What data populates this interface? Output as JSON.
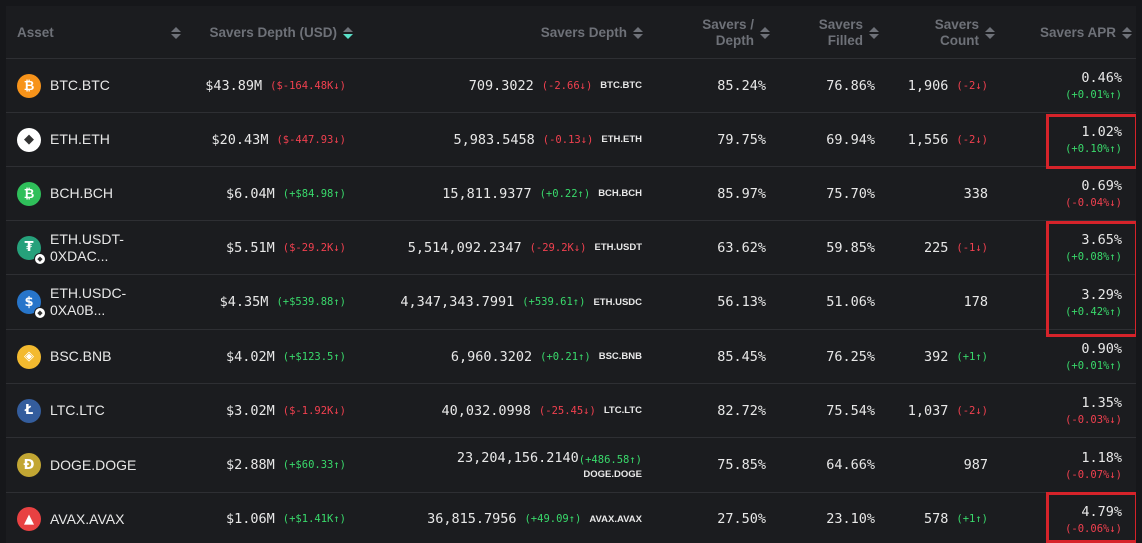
{
  "headers": {
    "asset": "Asset",
    "depth_usd": "Savers Depth (USD)",
    "depth": "Savers Depth",
    "savers_depth_pct": [
      "Savers /",
      "Depth"
    ],
    "filled": [
      "Savers",
      "Filled"
    ],
    "count": [
      "Savers",
      "Count"
    ],
    "apr": "Savers APR"
  },
  "colors": {
    "up": "#39d96b",
    "down": "#f0404f",
    "sort_active": "#5ae0c8",
    "highlight": "#d6232a"
  },
  "rows": [
    {
      "asset": "BTC.BTC",
      "icon": "bitcoin-icon",
      "icon_color": "#f7931a",
      "usd": "$43.89M",
      "usd_chg": "($-164.48K↓)",
      "usd_dir": "down",
      "depth": "709.3022",
      "depth_chg": "(-2.66↓)",
      "depth_dir": "down",
      "unit": "BTC.BTC",
      "pct": "85.24%",
      "filled": "76.86%",
      "count": "1,906",
      "count_chg": "(-2↓)",
      "count_dir": "down",
      "apr": "0.46%",
      "apr_chg": "(+0.01%↑)",
      "apr_dir": "up"
    },
    {
      "asset": "ETH.ETH",
      "icon": "ethereum-icon",
      "icon_color": "#ffffff",
      "usd": "$20.43M",
      "usd_chg": "($-447.93↓)",
      "usd_dir": "down",
      "depth": "5,983.5458",
      "depth_chg": "(-0.13↓)",
      "depth_dir": "down",
      "unit": "ETH.ETH",
      "pct": "79.75%",
      "filled": "69.94%",
      "count": "1,556",
      "count_chg": "(-2↓)",
      "count_dir": "down",
      "apr": "1.02%",
      "apr_chg": "(+0.10%↑)",
      "apr_dir": "up"
    },
    {
      "asset": "BCH.BCH",
      "icon": "bitcoin-cash-icon",
      "icon_color": "#2fbf5a",
      "usd": "$6.04M",
      "usd_chg": "(+$84.98↑)",
      "usd_dir": "up",
      "depth": "15,811.9377",
      "depth_chg": "(+0.22↑)",
      "depth_dir": "up",
      "unit": "BCH.BCH",
      "pct": "85.97%",
      "filled": "75.70%",
      "count": "338",
      "count_chg": "",
      "count_dir": "",
      "apr": "0.69%",
      "apr_chg": "(-0.04%↓)",
      "apr_dir": "down"
    },
    {
      "asset": "ETH.USDT-0XDAC...",
      "icon": "tether-icon",
      "icon_color": "#26a17b",
      "usd": "$5.51M",
      "usd_chg": "($-29.2K↓)",
      "usd_dir": "down",
      "depth": "5,514,092.2347",
      "depth_chg": "(-29.2K↓)",
      "depth_dir": "down",
      "unit": "ETH.USDT",
      "pct": "63.62%",
      "filled": "59.85%",
      "count": "225",
      "count_chg": "(-1↓)",
      "count_dir": "down",
      "apr": "3.65%",
      "apr_chg": "(+0.08%↑)",
      "apr_dir": "up"
    },
    {
      "asset": "ETH.USDC-0XA0B...",
      "icon": "usdc-icon",
      "icon_color": "#2775ca",
      "usd": "$4.35M",
      "usd_chg": "(+$539.88↑)",
      "usd_dir": "up",
      "depth": "4,347,343.7991",
      "depth_chg": "(+539.61↑)",
      "depth_dir": "up",
      "unit": "ETH.USDC",
      "pct": "56.13%",
      "filled": "51.06%",
      "count": "178",
      "count_chg": "",
      "count_dir": "",
      "apr": "3.29%",
      "apr_chg": "(+0.42%↑)",
      "apr_dir": "up"
    },
    {
      "asset": "BSC.BNB",
      "icon": "bnb-icon",
      "icon_color": "#f3ba2f",
      "usd": "$4.02M",
      "usd_chg": "(+$123.5↑)",
      "usd_dir": "up",
      "depth": "6,960.3202",
      "depth_chg": "(+0.21↑)",
      "depth_dir": "up",
      "unit": "BSC.BNB",
      "pct": "85.45%",
      "filled": "76.25%",
      "count": "392",
      "count_chg": "(+1↑)",
      "count_dir": "up",
      "apr": "0.90%",
      "apr_chg": "(+0.01%↑)",
      "apr_dir": "up"
    },
    {
      "asset": "LTC.LTC",
      "icon": "litecoin-icon",
      "icon_color": "#345d9d",
      "usd": "$3.02M",
      "usd_chg": "($-1.92K↓)",
      "usd_dir": "down",
      "depth": "40,032.0998",
      "depth_chg": "(-25.45↓)",
      "depth_dir": "down",
      "unit": "LTC.LTC",
      "pct": "82.72%",
      "filled": "75.54%",
      "count": "1,037",
      "count_chg": "(-2↓)",
      "count_dir": "down",
      "apr": "1.35%",
      "apr_chg": "(-0.03%↓)",
      "apr_dir": "down"
    },
    {
      "asset": "DOGE.DOGE",
      "icon": "dogecoin-icon",
      "icon_color": "#c2a633",
      "usd": "$2.88M",
      "usd_chg": "(+$60.33↑)",
      "usd_dir": "up",
      "depth": "23,204,156.2140",
      "depth_chg": "(+486.58↑)",
      "depth_dir": "up",
      "unit": "DOGE.DOGE",
      "pct": "75.85%",
      "filled": "64.66%",
      "count": "987",
      "count_chg": "",
      "count_dir": "",
      "apr": "1.18%",
      "apr_chg": "(-0.07%↓)",
      "apr_dir": "down"
    },
    {
      "asset": "AVAX.AVAX",
      "icon": "avalanche-icon",
      "icon_color": "#e84142",
      "usd": "$1.06M",
      "usd_chg": "(+$1.41K↑)",
      "usd_dir": "up",
      "depth": "36,815.7956",
      "depth_chg": "(+49.09↑)",
      "depth_dir": "up",
      "unit": "AVAX.AVAX",
      "pct": "27.50%",
      "filled": "23.10%",
      "count": "578",
      "count_chg": "(+1↑)",
      "count_dir": "up",
      "apr": "4.79%",
      "apr_chg": "(-0.06%↓)",
      "apr_dir": "down"
    }
  ]
}
